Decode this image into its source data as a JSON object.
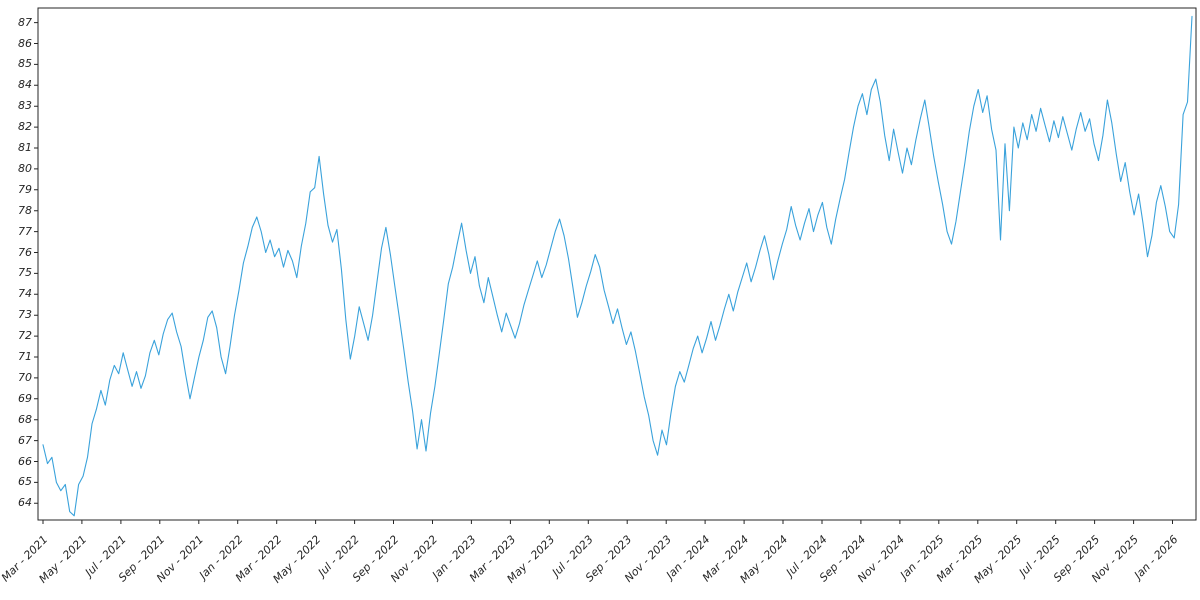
{
  "chart_data": {
    "type": "line",
    "title": "",
    "xlabel": "",
    "ylabel": "",
    "legend": null,
    "grid": false,
    "background": "#ffffff",
    "line_color": "#3aa2db",
    "axis_color": "#262626",
    "ylim": [
      63.2,
      87.7
    ],
    "yticks": [
      64,
      65,
      66,
      67,
      68,
      69,
      70,
      71,
      72,
      73,
      74,
      75,
      76,
      77,
      78,
      79,
      80,
      81,
      82,
      83,
      84,
      85,
      86,
      87
    ],
    "x_months_span": 59,
    "xticklabels": [
      "Mar - 2021",
      "May - 2021",
      "Jul - 2021",
      "Sep - 2021",
      "Nov - 2021",
      "Jan - 2022",
      "Mar - 2022",
      "May - 2022",
      "Jul - 2022",
      "Sep - 2022",
      "Nov - 2022",
      "Jan - 2023",
      "Mar - 2023",
      "May - 2023",
      "Jul - 2023",
      "Sep - 2023",
      "Nov - 2023",
      "Jan - 2024",
      "Mar - 2024",
      "May - 2024",
      "Jul - 2024",
      "Sep - 2024",
      "Nov - 2024",
      "Jan - 2025",
      "Mar - 2025",
      "May - 2025",
      "Jul - 2025",
      "Sep - 2025",
      "Nov - 2025",
      "Jan - 2026"
    ],
    "sampling": "weekly values from Mar 2021 through end of Jan 2026",
    "values": [
      66.8,
      65.9,
      66.2,
      65.0,
      64.6,
      64.9,
      63.6,
      63.4,
      64.9,
      65.3,
      66.2,
      67.8,
      68.5,
      69.4,
      68.7,
      69.9,
      70.6,
      70.2,
      71.2,
      70.4,
      69.6,
      70.3,
      69.5,
      70.1,
      71.2,
      71.8,
      71.1,
      72.1,
      72.8,
      73.1,
      72.2,
      71.5,
      70.2,
      69.0,
      70.0,
      71.0,
      71.8,
      72.9,
      73.2,
      72.4,
      71.0,
      70.2,
      71.5,
      73.0,
      74.2,
      75.5,
      76.3,
      77.2,
      77.7,
      77.0,
      76.0,
      76.6,
      75.8,
      76.2,
      75.3,
      76.1,
      75.6,
      74.8,
      76.3,
      77.4,
      78.9,
      79.1,
      80.6,
      78.8,
      77.3,
      76.5,
      77.1,
      75.2,
      72.8,
      70.9,
      72.0,
      73.4,
      72.6,
      71.8,
      73.0,
      74.6,
      76.2,
      77.2,
      75.9,
      74.4,
      72.9,
      71.4,
      69.8,
      68.4,
      66.6,
      68.0,
      66.5,
      68.3,
      69.6,
      71.2,
      72.8,
      74.5,
      75.3,
      76.4,
      77.4,
      76.1,
      75.0,
      75.8,
      74.4,
      73.6,
      74.8,
      73.9,
      73.0,
      72.2,
      73.1,
      72.5,
      71.9,
      72.6,
      73.5,
      74.2,
      74.9,
      75.6,
      74.8,
      75.4,
      76.2,
      77.0,
      77.6,
      76.8,
      75.7,
      74.3,
      72.9,
      73.6,
      74.4,
      75.1,
      75.9,
      75.3,
      74.2,
      73.4,
      72.6,
      73.3,
      72.4,
      71.6,
      72.2,
      71.3,
      70.2,
      69.1,
      68.2,
      67.0,
      66.3,
      67.5,
      66.8,
      68.3,
      69.6,
      70.3,
      69.8,
      70.6,
      71.4,
      72.0,
      71.2,
      71.9,
      72.7,
      71.8,
      72.5,
      73.3,
      74.0,
      73.2,
      74.1,
      74.8,
      75.5,
      74.6,
      75.3,
      76.1,
      76.8,
      75.9,
      74.7,
      75.6,
      76.4,
      77.1,
      78.2,
      77.3,
      76.6,
      77.4,
      78.1,
      77.0,
      77.8,
      78.4,
      77.2,
      76.4,
      77.6,
      78.6,
      79.5,
      80.8,
      82.0,
      83.0,
      83.6,
      82.6,
      83.8,
      84.3,
      83.2,
      81.6,
      80.4,
      81.9,
      80.8,
      79.8,
      81.0,
      80.2,
      81.4,
      82.4,
      83.3,
      82.0,
      80.6,
      79.4,
      78.3,
      77.0,
      76.4,
      77.5,
      78.9,
      80.3,
      81.8,
      83.0,
      83.8,
      82.7,
      83.5,
      81.9,
      80.9,
      76.6,
      81.2,
      78.0,
      82.0,
      81.0,
      82.2,
      81.4,
      82.6,
      81.8,
      82.9,
      82.1,
      81.3,
      82.3,
      81.5,
      82.5,
      81.7,
      80.9,
      81.9,
      82.7,
      81.8,
      82.4,
      81.2,
      80.4,
      81.6,
      83.3,
      82.2,
      80.7,
      79.4,
      80.3,
      78.9,
      77.8,
      78.8,
      77.4,
      75.8,
      76.8,
      78.4,
      79.2,
      78.2,
      77.0,
      76.7,
      78.3,
      82.6,
      83.2,
      87.3
    ]
  }
}
